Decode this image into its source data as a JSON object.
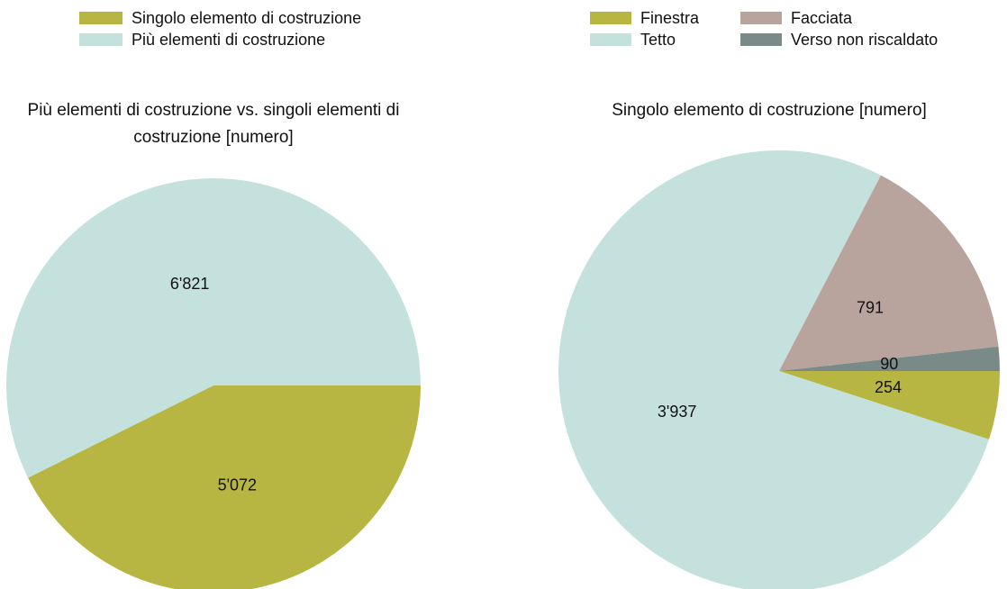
{
  "chart_data": [
    {
      "type": "pie",
      "title": "Più elementi di costruzione vs. singoli elementi di costruzione  [numero]",
      "categories": [
        "Singolo elemento di costruzione",
        "Più elementi di costruzione"
      ],
      "values": [
        5072,
        6821
      ],
      "value_labels": [
        "5'072",
        "6'821"
      ],
      "colors": [
        "#b8b642",
        "#c5e1de"
      ]
    },
    {
      "type": "pie",
      "title": "Singolo elemento di costruzione [numero]",
      "categories": [
        "Finestra",
        "Tetto",
        "Facciata",
        "Verso non riscaldato"
      ],
      "values": [
        254,
        3937,
        791,
        90
      ],
      "value_labels": [
        "254",
        "3'937",
        "791",
        "90"
      ],
      "colors": [
        "#b8b642",
        "#c5e1de",
        "#b9a49d",
        "#7a8a88"
      ]
    }
  ]
}
